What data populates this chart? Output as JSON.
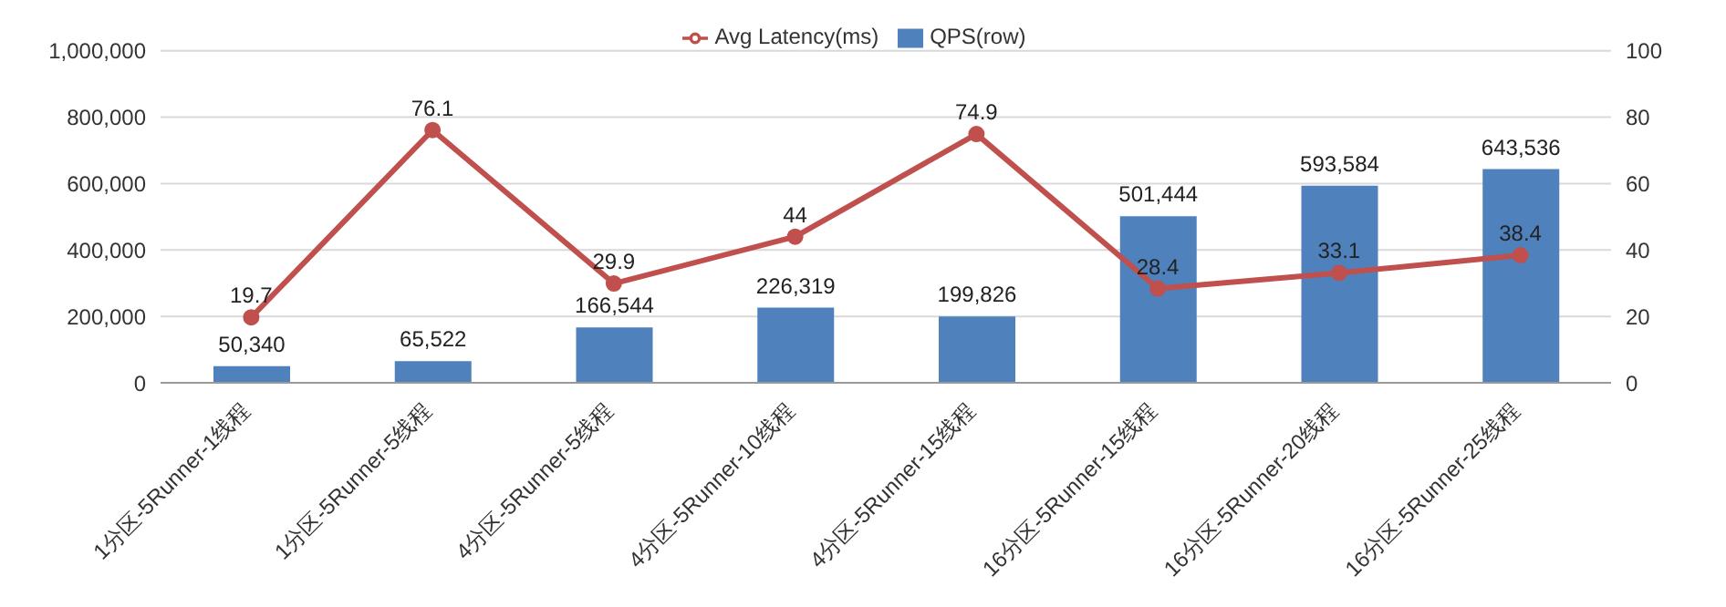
{
  "chart_data": {
    "type": "bar",
    "categories": [
      "1分区-5Runner-1线程",
      "1分区-5Runner-5线程",
      "4分区-5Runner-5线程",
      "4分区-5Runner-10线程",
      "4分区-5Runner-15线程",
      "16分区-5Runner-15线程",
      "16分区-5Runner-20线程",
      "16分区-5Runner-25线程"
    ],
    "series": [
      {
        "name": "QPS(row)",
        "color": "#4f81bd",
        "values": [
          50340,
          65522,
          166544,
          226319,
          199826,
          501444,
          593584,
          643536
        ],
        "value_labels": [
          "50,340",
          "65,522",
          "166,544",
          "226,319",
          "199,826",
          "501,444",
          "593,584",
          "643,536"
        ]
      },
      {
        "name": "Avg Latency(ms)",
        "type": "line",
        "axis": "y2",
        "color": "#c0504d",
        "values": [
          19.7,
          76.1,
          29.9,
          44,
          74.9,
          28.4,
          33.1,
          38.4
        ],
        "value_labels": [
          "19.7",
          "76.1",
          "29.9",
          "44",
          "74.9",
          "28.4",
          "33.1",
          "38.4"
        ]
      }
    ],
    "ylim": [
      0,
      1000000
    ],
    "yticks": [
      0,
      {
        "value": 200000,
        "label": "200,000"
      },
      {
        "value": 400000,
        "label": "400,000"
      },
      {
        "value": 600000,
        "label": "600,000"
      },
      {
        "value": 800000,
        "label": "800,000"
      },
      {
        "value": 1000000,
        "label": "1,000,000"
      }
    ],
    "y2lim": [
      0,
      100
    ],
    "y2ticks": [
      0,
      20,
      40,
      60,
      80,
      100
    ],
    "grid": "y",
    "legend": "top",
    "marker": "circle"
  }
}
